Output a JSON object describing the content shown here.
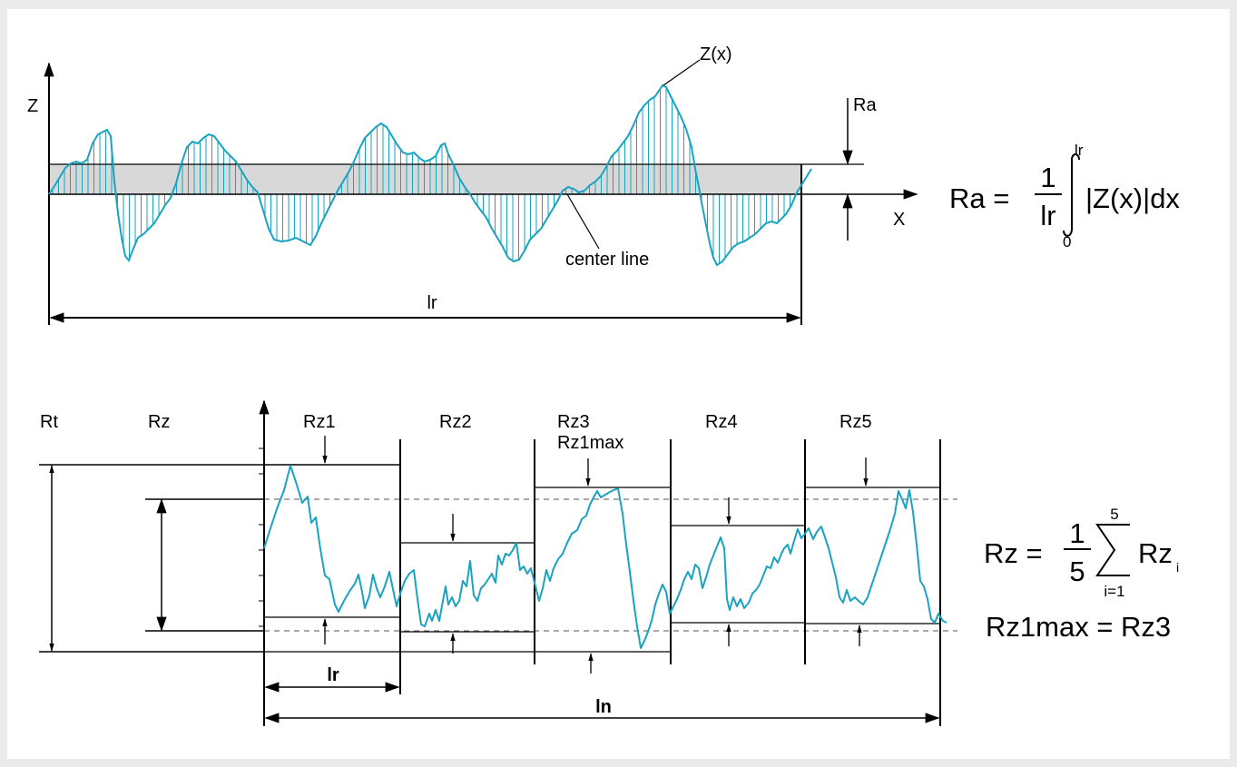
{
  "colors": {
    "background": "#ebebeb",
    "panel": "#ffffff",
    "profile": "#1aa3c0",
    "band": "#d8d8d8",
    "line": "#000000",
    "dashed": "#777777"
  },
  "top_diagram": {
    "axis_z": "Z",
    "axis_x": "X",
    "curve_label": "Z(x)",
    "ra_label": "Ra",
    "center_line_label": "center line",
    "length_label": "lr",
    "formula": {
      "lhs": "Ra =",
      "numerator": "1",
      "denominator": "lr",
      "upper_limit": "lr",
      "lower_limit": "0",
      "integrand": "|Z(x)|dx"
    }
  },
  "bottom_diagram": {
    "rt_label": "Rt",
    "rz_label": "Rz",
    "segments": [
      "Rz1",
      "Rz2",
      "Rz3",
      "Rz4",
      "Rz5"
    ],
    "rz1max_note": "Rz1max",
    "sample_length_label": "lr",
    "evaluation_length_label": "ln",
    "formula": {
      "lhs": "Rz =",
      "numerator": "1",
      "denominator": "5",
      "upper": "5",
      "lower": "i=1",
      "term": "Rz",
      "subscript": "i"
    },
    "equality": "Rz1max = Rz3"
  }
}
